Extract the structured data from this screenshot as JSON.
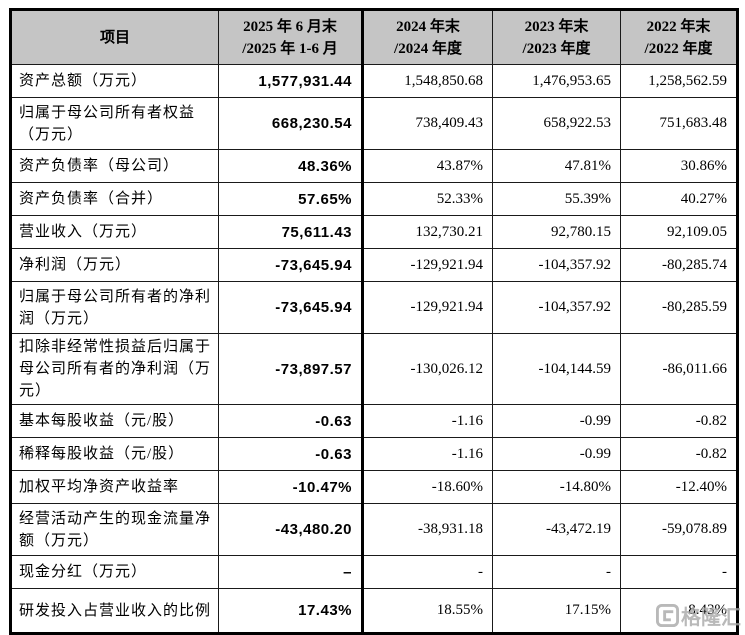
{
  "table": {
    "header": {
      "item_label": "项目",
      "columns": [
        {
          "line1": "2025 年 6 月末",
          "line2": "/2025 年 1-6 月"
        },
        {
          "line1": "2024 年末",
          "line2": "/2024 年度"
        },
        {
          "line1": "2023 年末",
          "line2": "/2023 年度"
        },
        {
          "line1": "2022 年末",
          "line2": "/2022 年度"
        }
      ]
    },
    "rows": [
      {
        "label": "资产总额（万元）",
        "lines": 1,
        "values": [
          "1,577,931.44",
          "1,548,850.68",
          "1,476,953.65",
          "1,258,562.59"
        ]
      },
      {
        "label": "归属于母公司所有者权益（万元）",
        "lines": 2,
        "values": [
          "668,230.54",
          "738,409.43",
          "658,922.53",
          "751,683.48"
        ]
      },
      {
        "label": "资产负债率（母公司）",
        "lines": 1,
        "values": [
          "48.36%",
          "43.87%",
          "47.81%",
          "30.86%"
        ]
      },
      {
        "label": "资产负债率（合并）",
        "lines": 1,
        "values": [
          "57.65%",
          "52.33%",
          "55.39%",
          "40.27%"
        ]
      },
      {
        "label": "营业收入（万元）",
        "lines": 1,
        "values": [
          "75,611.43",
          "132,730.21",
          "92,780.15",
          "92,109.05"
        ]
      },
      {
        "label": "净利润（万元）",
        "lines": 1,
        "values": [
          "-73,645.94",
          "-129,921.94",
          "-104,357.92",
          "-80,285.74"
        ]
      },
      {
        "label": "归属于母公司所有者的净利润（万元）",
        "lines": 2,
        "values": [
          "-73,645.94",
          "-129,921.94",
          "-104,357.92",
          "-80,285.59"
        ]
      },
      {
        "label": "扣除非经常性损益后归属于母公司所有者的净利润（万元）",
        "lines": 3,
        "values": [
          "-73,897.57",
          "-130,026.12",
          "-104,144.59",
          "-86,011.66"
        ]
      },
      {
        "label": "基本每股收益（元/股）",
        "lines": 1,
        "values": [
          "-0.63",
          "-1.16",
          "-0.99",
          "-0.82"
        ]
      },
      {
        "label": "稀释每股收益（元/股）",
        "lines": 1,
        "values": [
          "-0.63",
          "-1.16",
          "-0.99",
          "-0.82"
        ]
      },
      {
        "label": "加权平均净资产收益率",
        "lines": 1,
        "values": [
          "-10.47%",
          "-18.60%",
          "-14.80%",
          "-12.40%"
        ]
      },
      {
        "label": "经营活动产生的现金流量净额（万元）",
        "lines": 2,
        "values": [
          "-43,480.20",
          "-38,931.18",
          "-43,472.19",
          "-59,078.89"
        ]
      },
      {
        "label": "现金分红（万元）",
        "lines": 1,
        "values": [
          "–",
          "-",
          "-",
          "-"
        ]
      },
      {
        "label": "研发投入占营业收入的比例",
        "lines": "2s",
        "values": [
          "17.43%",
          "18.55%",
          "17.15%",
          "8.43%"
        ]
      }
    ]
  },
  "watermark": {
    "logo": "G-square-icon",
    "text": "格隆汇"
  },
  "colors": {
    "header_bg": "#c5c5c5",
    "border": "#000000",
    "text": "#000000",
    "watermark": "#a8a8a8"
  }
}
